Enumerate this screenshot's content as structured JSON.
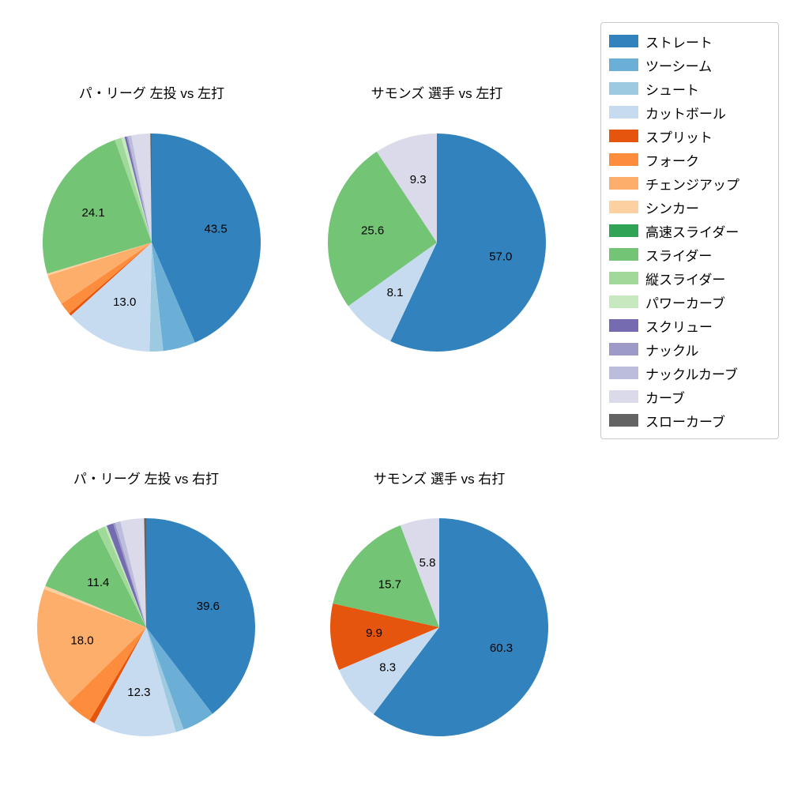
{
  "chart_data": {
    "type": "pie",
    "label_format": "percent_one_decimal",
    "label_min_value": 5.0,
    "layout": "2x2 pies, shared legend top-right",
    "charts": [
      {
        "title": "パ・リーグ 左投 vs 左打",
        "slices": [
          {
            "label": "ストレート",
            "value": 43.5
          },
          {
            "label": "ツーシーム",
            "value": 4.8
          },
          {
            "label": "シュート",
            "value": 2.0
          },
          {
            "label": "カットボール",
            "value": 13.0
          },
          {
            "label": "スプリット",
            "value": 0.4
          },
          {
            "label": "フォーク",
            "value": 1.8
          },
          {
            "label": "チェンジアップ",
            "value": 4.6
          },
          {
            "label": "シンカー",
            "value": 0.3
          },
          {
            "label": "スライダー",
            "value": 24.1
          },
          {
            "label": "縦スライダー",
            "value": 1.0
          },
          {
            "label": "パワーカーブ",
            "value": 0.5
          },
          {
            "label": "スクリュー",
            "value": 0.3
          },
          {
            "label": "ナックル",
            "value": 0.2
          },
          {
            "label": "ナックルカーブ",
            "value": 0.5
          },
          {
            "label": "カーブ",
            "value": 2.8
          },
          {
            "label": "スローカーブ",
            "value": 0.2
          }
        ]
      },
      {
        "title": "サモンズ 選手 vs 左打",
        "slices": [
          {
            "label": "ストレート",
            "value": 57.0
          },
          {
            "label": "カットボール",
            "value": 8.1
          },
          {
            "label": "スライダー",
            "value": 25.6
          },
          {
            "label": "カーブ",
            "value": 9.3
          }
        ]
      },
      {
        "title": "パ・リーグ 左投 vs 右打",
        "slices": [
          {
            "label": "ストレート",
            "value": 39.6
          },
          {
            "label": "ツーシーム",
            "value": 4.8
          },
          {
            "label": "シュート",
            "value": 1.2
          },
          {
            "label": "カットボール",
            "value": 12.3
          },
          {
            "label": "スプリット",
            "value": 0.8
          },
          {
            "label": "フォーク",
            "value": 4.0
          },
          {
            "label": "チェンジアップ",
            "value": 18.0
          },
          {
            "label": "シンカー",
            "value": 0.5
          },
          {
            "label": "スライダー",
            "value": 11.4
          },
          {
            "label": "縦スライダー",
            "value": 1.2
          },
          {
            "label": "パワーカーブ",
            "value": 0.3
          },
          {
            "label": "スクリュー",
            "value": 1.0
          },
          {
            "label": "ナックル",
            "value": 0.3
          },
          {
            "label": "ナックルカーブ",
            "value": 0.8
          },
          {
            "label": "カーブ",
            "value": 3.5
          },
          {
            "label": "スローカーブ",
            "value": 0.3
          }
        ]
      },
      {
        "title": "サモンズ 選手 vs 右打",
        "slices": [
          {
            "label": "ストレート",
            "value": 60.3
          },
          {
            "label": "カットボール",
            "value": 8.3
          },
          {
            "label": "スプリット",
            "value": 9.9
          },
          {
            "label": "スライダー",
            "value": 15.7
          },
          {
            "label": "カーブ",
            "value": 5.8
          }
        ]
      }
    ],
    "legend": {
      "position": "top-right",
      "items": [
        {
          "label": "ストレート",
          "color": "#3182bd"
        },
        {
          "label": "ツーシーム",
          "color": "#6baed6"
        },
        {
          "label": "シュート",
          "color": "#9ecae1"
        },
        {
          "label": "カットボール",
          "color": "#c6dbef"
        },
        {
          "label": "スプリット",
          "color": "#e6550d"
        },
        {
          "label": "フォーク",
          "color": "#fd8d3c"
        },
        {
          "label": "チェンジアップ",
          "color": "#fdae6b"
        },
        {
          "label": "シンカー",
          "color": "#fdd0a2"
        },
        {
          "label": "高速スライダー",
          "color": "#31a354"
        },
        {
          "label": "スライダー",
          "color": "#74c476"
        },
        {
          "label": "縦スライダー",
          "color": "#a1d99b"
        },
        {
          "label": "パワーカーブ",
          "color": "#c7e9c0"
        },
        {
          "label": "スクリュー",
          "color": "#756bb1"
        },
        {
          "label": "ナックル",
          "color": "#9e9ac8"
        },
        {
          "label": "ナックルカーブ",
          "color": "#bcbddc"
        },
        {
          "label": "カーブ",
          "color": "#dadaeb"
        },
        {
          "label": "スローカーブ",
          "color": "#636363"
        }
      ]
    }
  }
}
